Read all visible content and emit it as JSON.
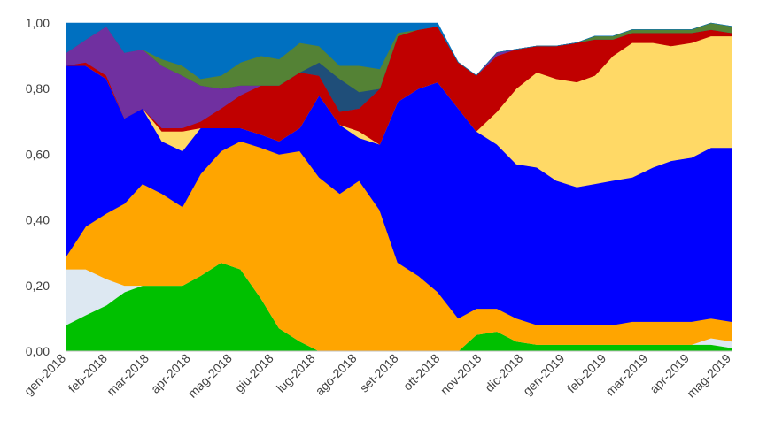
{
  "chart_data": {
    "type": "area",
    "stacked": true,
    "normalized": true,
    "ylim": [
      0,
      1
    ],
    "yticks": [
      "0,00",
      "0,20",
      "0,40",
      "0,60",
      "0,80",
      "1,00"
    ],
    "categories": [
      "gen-2018",
      "feb-2018",
      "mar-2018",
      "apr-2018",
      "mag-2018",
      "giu-2018",
      "lug-2018",
      "ago-2018",
      "set-2018",
      "ott-2018",
      "nov-2018",
      "dic-2018",
      "gen-2019",
      "feb-2019",
      "mar-2019",
      "apr-2019",
      "mag-2019"
    ],
    "x": [
      "2018-01-01",
      "2018-01-16",
      "2018-02-01",
      "2018-02-15",
      "2018-03-01",
      "2018-03-16",
      "2018-04-01",
      "2018-04-15",
      "2018-05-01",
      "2018-05-16",
      "2018-06-01",
      "2018-06-15",
      "2018-07-01",
      "2018-07-16",
      "2018-08-01",
      "2018-08-16",
      "2018-09-01",
      "2018-09-15",
      "2018-10-01",
      "2018-10-16",
      "2018-11-01",
      "2018-11-15",
      "2018-12-01",
      "2018-12-16",
      "2019-01-01",
      "2019-01-16",
      "2019-02-01",
      "2019-02-15",
      "2019-03-01",
      "2019-03-16",
      "2019-04-01",
      "2019-04-15",
      "2019-05-01",
      "2019-05-16",
      "2019-06-01"
    ],
    "series": [
      {
        "color": "#00c000",
        "values": [
          0.08,
          0.11,
          0.14,
          0.18,
          0.2,
          0.2,
          0.2,
          0.23,
          0.27,
          0.25,
          0.16,
          0.07,
          0.03,
          0.0,
          0.0,
          0.0,
          0.0,
          0.0,
          0.0,
          0.0,
          0.0,
          0.05,
          0.06,
          0.03,
          0.02,
          0.02,
          0.02,
          0.02,
          0.02,
          0.02,
          0.02,
          0.02,
          0.02,
          0.02,
          0.01
        ]
      },
      {
        "color": "#dde8f2",
        "values": [
          0.17,
          0.14,
          0.08,
          0.02,
          0.0,
          0.0,
          0.0,
          0.0,
          0.0,
          0.0,
          0.0,
          0.0,
          0.0,
          0.0,
          0.0,
          0.0,
          0.0,
          0.0,
          0.0,
          0.0,
          0.0,
          0.0,
          0.0,
          0.0,
          0.0,
          0.0,
          0.0,
          0.0,
          0.0,
          0.0,
          0.0,
          0.0,
          0.0,
          0.02,
          0.02
        ]
      },
      {
        "color": "#ffa500",
        "values": [
          0.04,
          0.13,
          0.2,
          0.25,
          0.31,
          0.28,
          0.24,
          0.31,
          0.34,
          0.39,
          0.46,
          0.53,
          0.58,
          0.53,
          0.48,
          0.52,
          0.43,
          0.27,
          0.23,
          0.18,
          0.1,
          0.08,
          0.07,
          0.07,
          0.06,
          0.06,
          0.06,
          0.06,
          0.06,
          0.07,
          0.07,
          0.07,
          0.07,
          0.06,
          0.06
        ]
      },
      {
        "color": "#0000ff",
        "values": [
          0.58,
          0.49,
          0.41,
          0.26,
          0.23,
          0.16,
          0.17,
          0.14,
          0.07,
          0.04,
          0.04,
          0.04,
          0.07,
          0.25,
          0.21,
          0.13,
          0.2,
          0.49,
          0.57,
          0.64,
          0.64,
          0.54,
          0.5,
          0.47,
          0.48,
          0.44,
          0.42,
          0.43,
          0.44,
          0.44,
          0.47,
          0.49,
          0.5,
          0.52,
          0.53
        ]
      },
      {
        "color": "#ffd966",
        "values": [
          0.0,
          0.0,
          0.0,
          0.0,
          0.0,
          0.03,
          0.06,
          0.0,
          0.0,
          0.0,
          0.0,
          0.0,
          0.0,
          0.0,
          0.0,
          0.02,
          0.0,
          0.0,
          0.0,
          0.0,
          0.0,
          0.0,
          0.1,
          0.23,
          0.29,
          0.31,
          0.32,
          0.33,
          0.38,
          0.41,
          0.38,
          0.35,
          0.35,
          0.34,
          0.34
        ]
      },
      {
        "color": "#c00000",
        "values": [
          0.0,
          0.01,
          0.01,
          0.0,
          0.0,
          0.01,
          0.01,
          0.02,
          0.06,
          0.1,
          0.15,
          0.17,
          0.17,
          0.06,
          0.04,
          0.07,
          0.17,
          0.2,
          0.18,
          0.17,
          0.14,
          0.17,
          0.17,
          0.12,
          0.08,
          0.1,
          0.12,
          0.11,
          0.05,
          0.03,
          0.03,
          0.04,
          0.03,
          0.02,
          0.01
        ]
      },
      {
        "color": "#7030a0",
        "values": [
          0.04,
          0.07,
          0.15,
          0.2,
          0.18,
          0.19,
          0.16,
          0.11,
          0.06,
          0.03,
          0.0,
          0.0,
          0.0,
          0.0,
          0.0,
          0.0,
          0.0,
          0.0,
          0.0,
          0.0,
          0.0,
          0.0,
          0.01,
          0.0,
          0.0,
          0.0,
          0.0,
          0.0,
          0.0,
          0.0,
          0.0,
          0.0,
          0.0,
          0.0,
          0.0
        ]
      },
      {
        "color": "#1f4e79",
        "values": [
          0.0,
          0.0,
          0.0,
          0.0,
          0.0,
          0.0,
          0.0,
          0.0,
          0.0,
          0.0,
          0.0,
          0.0,
          0.0,
          0.04,
          0.1,
          0.05,
          0.0,
          0.0,
          0.0,
          0.0,
          0.0,
          0.0,
          0.0,
          0.0,
          0.0,
          0.0,
          0.0,
          0.0,
          0.0,
          0.0,
          0.0,
          0.0,
          0.0,
          0.0,
          0.0
        ]
      },
      {
        "color": "#548235",
        "values": [
          0.0,
          0.0,
          0.0,
          0.0,
          0.0,
          0.02,
          0.03,
          0.02,
          0.04,
          0.07,
          0.09,
          0.08,
          0.09,
          0.05,
          0.04,
          0.08,
          0.06,
          0.01,
          0.0,
          0.0,
          0.0,
          0.0,
          0.0,
          0.0,
          0.0,
          0.0,
          0.0,
          0.01,
          0.01,
          0.01,
          0.01,
          0.01,
          0.01,
          0.02,
          0.02
        ]
      },
      {
        "color": "#0070c0",
        "values": [
          0.09,
          0.05,
          0.01,
          0.09,
          0.08,
          0.11,
          0.13,
          0.17,
          0.16,
          0.12,
          0.1,
          0.11,
          0.06,
          0.07,
          0.13,
          0.13,
          0.14,
          0.03,
          0.02,
          0.01,
          0.0,
          0.0,
          0.0,
          0.0,
          0.0,
          0.0,
          0.0,
          0.0,
          0.0,
          0.0,
          0.0,
          0.0,
          0.0,
          0.0,
          0.0
        ]
      }
    ]
  }
}
